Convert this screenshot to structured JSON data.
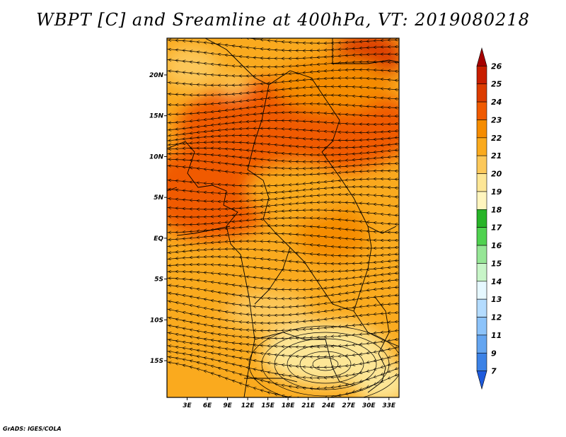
{
  "title": "WBPT [C] and Sreamline at 400hPa, VT: 2019080218",
  "credit": "GrADS: IGES/COLA",
  "map": {
    "lat_labels": [
      "20N",
      "15N",
      "10N",
      "5N",
      "EQ",
      "5S",
      "10S",
      "15S"
    ],
    "lat_values": [
      20,
      15,
      10,
      5,
      0,
      -5,
      -10,
      -15
    ],
    "lon_labels": [
      "3E",
      "6E",
      "9E",
      "12E",
      "15E",
      "18E",
      "21E",
      "24E",
      "27E",
      "30E",
      "33E"
    ],
    "lon_values": [
      3,
      6,
      9,
      12,
      15,
      18,
      21,
      24,
      27,
      30,
      33
    ],
    "lat_range": [
      -19.5,
      24.5
    ],
    "lon_range": [
      0,
      34.5
    ]
  },
  "colorbar": {
    "labels": [
      "26",
      "25",
      "24",
      "23",
      "22",
      "21",
      "20",
      "19",
      "18",
      "17",
      "16",
      "15",
      "14",
      "13",
      "12",
      "11",
      "9",
      "7"
    ],
    "colors": [
      "#a50000",
      "#c81e00",
      "#dc3c00",
      "#f05a00",
      "#f58c00",
      "#faaa1e",
      "#fcc85a",
      "#fde696",
      "#fff5be",
      "#28b428",
      "#50d250",
      "#96e696",
      "#c8f5c8",
      "#e6f8ff",
      "#b4dcff",
      "#8cc3fa",
      "#64a5f0",
      "#3c82e6",
      "#1e5adc"
    ]
  }
}
